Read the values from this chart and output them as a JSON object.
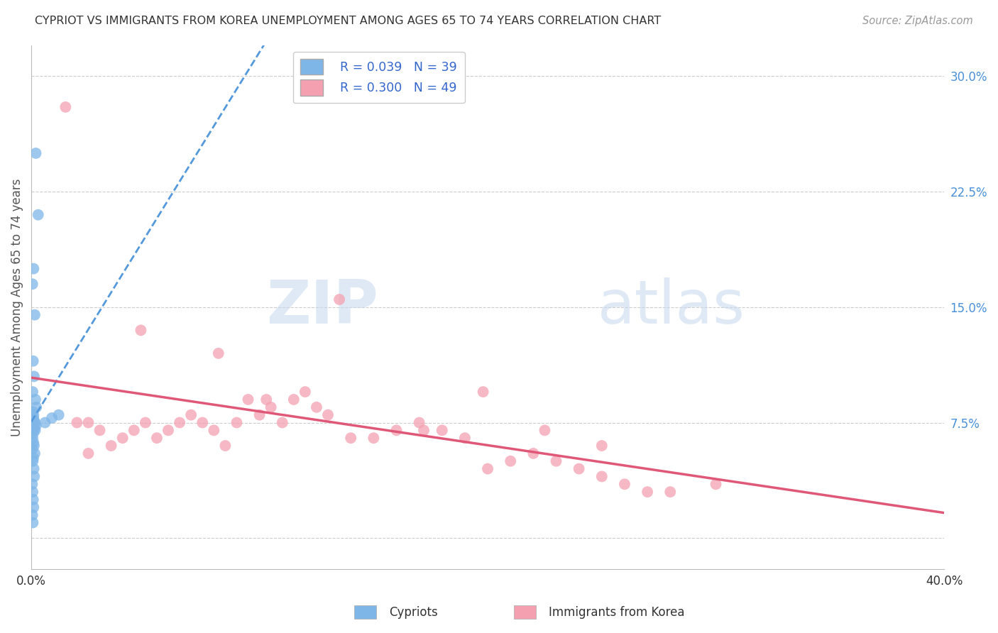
{
  "title": "CYPRIOT VS IMMIGRANTS FROM KOREA UNEMPLOYMENT AMONG AGES 65 TO 74 YEARS CORRELATION CHART",
  "source": "Source: ZipAtlas.com",
  "ylabel": "Unemployment Among Ages 65 to 74 years",
  "xlim": [
    0.0,
    40.0
  ],
  "ylim": [
    -2.0,
    32.0
  ],
  "yticks": [
    0.0,
    7.5,
    15.0,
    22.5,
    30.0
  ],
  "ytick_labels": [
    "",
    "7.5%",
    "15.0%",
    "22.5%",
    "30.0%"
  ],
  "xticks": [
    0.0,
    10.0,
    20.0,
    30.0,
    40.0
  ],
  "xtick_labels": [
    "0.0%",
    "",
    "",
    "",
    "40.0%"
  ],
  "cypriot_color": "#7EB6E8",
  "korea_color": "#F4A0B0",
  "trend_blue": "#5599DD",
  "trend_pink": "#E05878",
  "cypriot_R": 0.039,
  "cypriot_N": 39,
  "korea_R": 0.3,
  "korea_N": 49,
  "watermark_zip": "ZIP",
  "watermark_atlas": "atlas",
  "legend_label1": "Cypriots",
  "legend_label2": "Immigrants from Korea",
  "cypriot_x": [
    0.2,
    0.3,
    0.1,
    0.05,
    0.15,
    0.08,
    0.12,
    0.06,
    0.18,
    0.22,
    0.07,
    0.1,
    0.09,
    0.13,
    0.16,
    0.04,
    0.2,
    0.11,
    0.14,
    0.17,
    0.08,
    0.06,
    0.1,
    0.12,
    0.05,
    0.15,
    0.09,
    0.07,
    0.11,
    0.13,
    0.04,
    0.06,
    0.08,
    0.1,
    0.05,
    0.07,
    0.6,
    0.9,
    1.2
  ],
  "cypriot_y": [
    25.0,
    21.0,
    17.5,
    16.5,
    14.5,
    11.5,
    10.5,
    9.5,
    9.0,
    8.5,
    8.2,
    8.0,
    7.8,
    7.6,
    7.5,
    7.4,
    7.3,
    7.2,
    7.1,
    7.0,
    6.8,
    6.5,
    6.2,
    6.0,
    5.8,
    5.5,
    5.2,
    5.0,
    4.5,
    4.0,
    3.5,
    3.0,
    2.5,
    2.0,
    1.5,
    1.0,
    7.5,
    7.8,
    8.0
  ],
  "korea_x": [
    1.5,
    2.0,
    2.5,
    3.0,
    3.5,
    4.0,
    4.5,
    5.0,
    5.5,
    6.0,
    6.5,
    7.0,
    7.5,
    8.0,
    8.5,
    9.0,
    9.5,
    10.0,
    10.5,
    11.0,
    11.5,
    12.0,
    12.5,
    13.0,
    14.0,
    15.0,
    16.0,
    17.0,
    18.0,
    19.0,
    20.0,
    21.0,
    22.0,
    23.0,
    24.0,
    25.0,
    26.0,
    27.0,
    28.0,
    30.0,
    4.8,
    8.2,
    10.3,
    13.5,
    17.2,
    19.8,
    22.5,
    25.0,
    2.5
  ],
  "korea_y": [
    28.0,
    7.5,
    7.5,
    7.0,
    6.0,
    6.5,
    7.0,
    7.5,
    6.5,
    7.0,
    7.5,
    8.0,
    7.5,
    7.0,
    6.0,
    7.5,
    9.0,
    8.0,
    8.5,
    7.5,
    9.0,
    9.5,
    8.5,
    8.0,
    6.5,
    6.5,
    7.0,
    7.5,
    7.0,
    6.5,
    4.5,
    5.0,
    5.5,
    5.0,
    4.5,
    4.0,
    3.5,
    3.0,
    3.0,
    3.5,
    13.5,
    12.0,
    9.0,
    15.5,
    7.0,
    9.5,
    7.0,
    6.0,
    5.5
  ]
}
